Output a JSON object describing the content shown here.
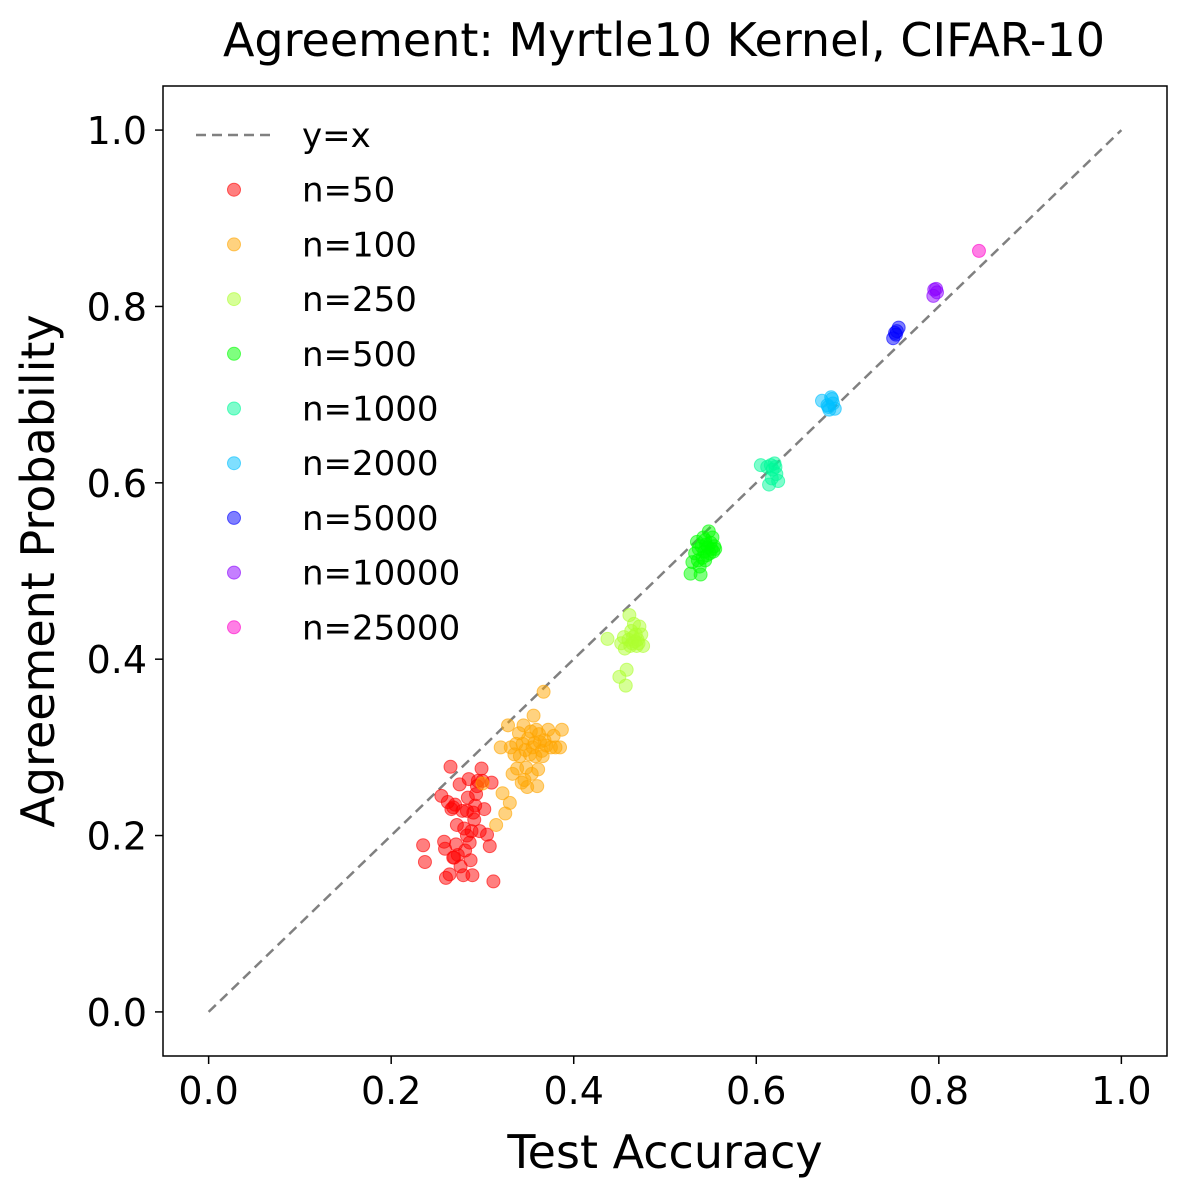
{
  "chart_data": {
    "type": "scatter",
    "title": "Agreement: Myrtle10 Kernel, CIFAR-10",
    "xlabel": "Test Accuracy",
    "ylabel": "Agreement Probability",
    "xlim": [
      -0.05,
      1.05
    ],
    "ylim": [
      -0.05,
      1.05
    ],
    "xticks": [
      0.0,
      0.2,
      0.4,
      0.6,
      0.8,
      1.0
    ],
    "yticks": [
      0.0,
      0.2,
      0.4,
      0.6,
      0.8,
      1.0
    ],
    "xtick_labels": [
      "0.0",
      "0.2",
      "0.4",
      "0.6",
      "0.8",
      "1.0"
    ],
    "ytick_labels": [
      "0.0",
      "0.2",
      "0.4",
      "0.6",
      "0.8",
      "1.0"
    ],
    "grid": false,
    "legend_position": "upper-left",
    "reference_line": {
      "name": "y=x",
      "color": "#808080",
      "style": "dashed",
      "from": [
        0,
        0
      ],
      "to": [
        1,
        1
      ]
    },
    "series": [
      {
        "name": "n=50",
        "color": "#ff0000",
        "points": [
          [
            0.235,
            0.189
          ],
          [
            0.237,
            0.17
          ],
          [
            0.255,
            0.245
          ],
          [
            0.258,
            0.193
          ],
          [
            0.259,
            0.185
          ],
          [
            0.26,
            0.152
          ],
          [
            0.262,
            0.238
          ],
          [
            0.264,
            0.156
          ],
          [
            0.265,
            0.278
          ],
          [
            0.266,
            0.23
          ],
          [
            0.268,
            0.232
          ],
          [
            0.269,
            0.175
          ],
          [
            0.27,
            0.235
          ],
          [
            0.272,
            0.212
          ],
          [
            0.273,
            0.178
          ],
          [
            0.275,
            0.258
          ],
          [
            0.276,
            0.165
          ],
          [
            0.278,
            0.228
          ],
          [
            0.28,
            0.208
          ],
          [
            0.281,
            0.183
          ],
          [
            0.283,
            0.228
          ],
          [
            0.284,
            0.243
          ],
          [
            0.285,
            0.264
          ],
          [
            0.286,
            0.192
          ],
          [
            0.287,
            0.172
          ],
          [
            0.288,
            0.205
          ],
          [
            0.289,
            0.155
          ],
          [
            0.29,
            0.226
          ],
          [
            0.292,
            0.234
          ],
          [
            0.293,
            0.247
          ],
          [
            0.294,
            0.256
          ],
          [
            0.295,
            0.262
          ],
          [
            0.297,
            0.205
          ],
          [
            0.299,
            0.276
          ],
          [
            0.302,
            0.23
          ],
          [
            0.305,
            0.201
          ],
          [
            0.308,
            0.188
          ],
          [
            0.31,
            0.26
          ],
          [
            0.312,
            0.148
          ],
          [
            0.268,
            0.175
          ],
          [
            0.279,
            0.155
          ],
          [
            0.291,
            0.218
          ],
          [
            0.3,
            0.262
          ],
          [
            0.271,
            0.19
          ],
          [
            0.283,
            0.2
          ]
        ]
      },
      {
        "name": "n=100",
        "color": "#ffa500",
        "points": [
          [
            0.3,
            0.259
          ],
          [
            0.315,
            0.212
          ],
          [
            0.32,
            0.3
          ],
          [
            0.322,
            0.248
          ],
          [
            0.325,
            0.225
          ],
          [
            0.328,
            0.325
          ],
          [
            0.33,
            0.237
          ],
          [
            0.331,
            0.3
          ],
          [
            0.333,
            0.27
          ],
          [
            0.335,
            0.292
          ],
          [
            0.337,
            0.304
          ],
          [
            0.338,
            0.276
          ],
          [
            0.34,
            0.316
          ],
          [
            0.341,
            0.29
          ],
          [
            0.343,
            0.26
          ],
          [
            0.344,
            0.304
          ],
          [
            0.345,
            0.325
          ],
          [
            0.347,
            0.297
          ],
          [
            0.348,
            0.277
          ],
          [
            0.349,
            0.255
          ],
          [
            0.35,
            0.31
          ],
          [
            0.352,
            0.292
          ],
          [
            0.353,
            0.318
          ],
          [
            0.354,
            0.27
          ],
          [
            0.355,
            0.3
          ],
          [
            0.356,
            0.336
          ],
          [
            0.357,
            0.305
          ],
          [
            0.358,
            0.29
          ],
          [
            0.359,
            0.32
          ],
          [
            0.36,
            0.256
          ],
          [
            0.361,
            0.275
          ],
          [
            0.362,
            0.315
          ],
          [
            0.363,
            0.306
          ],
          [
            0.365,
            0.296
          ],
          [
            0.367,
            0.363
          ],
          [
            0.368,
            0.308
          ],
          [
            0.37,
            0.302
          ],
          [
            0.372,
            0.32
          ],
          [
            0.375,
            0.3
          ],
          [
            0.378,
            0.313
          ],
          [
            0.38,
            0.3
          ],
          [
            0.385,
            0.3
          ],
          [
            0.387,
            0.32
          ],
          [
            0.346,
            0.263
          ],
          [
            0.366,
            0.29
          ]
        ]
      },
      {
        "name": "n=250",
        "color": "#adff2f",
        "points": [
          [
            0.437,
            0.423
          ],
          [
            0.45,
            0.38
          ],
          [
            0.452,
            0.418
          ],
          [
            0.455,
            0.425
          ],
          [
            0.457,
            0.37
          ],
          [
            0.458,
            0.388
          ],
          [
            0.46,
            0.422
          ],
          [
            0.461,
            0.45
          ],
          [
            0.462,
            0.415
          ],
          [
            0.463,
            0.432
          ],
          [
            0.464,
            0.418
          ],
          [
            0.465,
            0.425
          ],
          [
            0.466,
            0.44
          ],
          [
            0.467,
            0.42
          ],
          [
            0.468,
            0.428
          ],
          [
            0.469,
            0.415
          ],
          [
            0.47,
            0.422
          ],
          [
            0.472,
            0.437
          ],
          [
            0.474,
            0.428
          ],
          [
            0.476,
            0.415
          ],
          [
            0.456,
            0.412
          ],
          [
            0.471,
            0.418
          ]
        ]
      },
      {
        "name": "n=500",
        "color": "#00ff00",
        "points": [
          [
            0.528,
            0.497
          ],
          [
            0.53,
            0.51
          ],
          [
            0.533,
            0.52
          ],
          [
            0.535,
            0.533
          ],
          [
            0.537,
            0.525
          ],
          [
            0.538,
            0.505
          ],
          [
            0.539,
            0.496
          ],
          [
            0.54,
            0.528
          ],
          [
            0.541,
            0.515
          ],
          [
            0.542,
            0.538
          ],
          [
            0.543,
            0.522
          ],
          [
            0.544,
            0.535
          ],
          [
            0.545,
            0.53
          ],
          [
            0.546,
            0.518
          ],
          [
            0.547,
            0.527
          ],
          [
            0.548,
            0.545
          ],
          [
            0.549,
            0.52
          ],
          [
            0.55,
            0.532
          ],
          [
            0.551,
            0.525
          ],
          [
            0.552,
            0.538
          ],
          [
            0.553,
            0.522
          ],
          [
            0.554,
            0.528
          ],
          [
            0.555,
            0.525
          ],
          [
            0.536,
            0.512
          ],
          [
            0.544,
            0.512
          ]
        ]
      },
      {
        "name": "n=1000",
        "color": "#00fa9a",
        "points": [
          [
            0.605,
            0.62
          ],
          [
            0.612,
            0.618
          ],
          [
            0.614,
            0.598
          ],
          [
            0.616,
            0.62
          ],
          [
            0.618,
            0.615
          ],
          [
            0.62,
            0.622
          ],
          [
            0.622,
            0.61
          ],
          [
            0.624,
            0.602
          ],
          [
            0.621,
            0.618
          ],
          [
            0.617,
            0.605
          ]
        ]
      },
      {
        "name": "n=2000",
        "color": "#00bfff",
        "points": [
          [
            0.672,
            0.693
          ],
          [
            0.678,
            0.688
          ],
          [
            0.68,
            0.683
          ],
          [
            0.682,
            0.697
          ],
          [
            0.684,
            0.69
          ],
          [
            0.686,
            0.684
          ],
          [
            0.683,
            0.695
          ],
          [
            0.679,
            0.686
          ]
        ]
      },
      {
        "name": "n=5000",
        "color": "#0000ff",
        "points": [
          [
            0.75,
            0.764
          ],
          [
            0.752,
            0.77
          ],
          [
            0.754,
            0.772
          ],
          [
            0.756,
            0.776
          ],
          [
            0.753,
            0.768
          ]
        ]
      },
      {
        "name": "n=10000",
        "color": "#8b00ff",
        "points": [
          [
            0.794,
            0.812
          ],
          [
            0.795,
            0.819
          ],
          [
            0.797,
            0.82
          ],
          [
            0.798,
            0.816
          ]
        ]
      },
      {
        "name": "n=25000",
        "color": "#ff00cc",
        "points": [
          [
            0.844,
            0.863
          ]
        ]
      }
    ]
  }
}
